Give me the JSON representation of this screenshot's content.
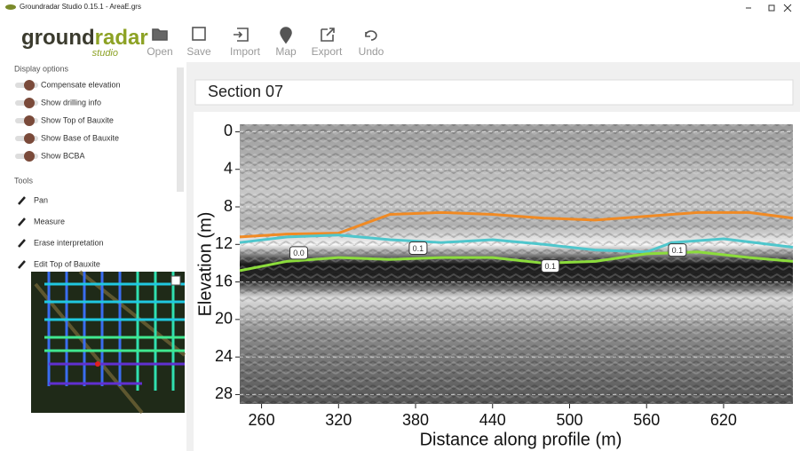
{
  "window_title": "Groundradar Studio 0.15.1 - AreaE.grs",
  "logo": {
    "ground": "ground",
    "radar": "radar",
    "studio": "studio"
  },
  "toolbar": [
    {
      "label": "Open"
    },
    {
      "label": "Save"
    },
    {
      "label": "Import"
    },
    {
      "label": "Map"
    },
    {
      "label": "Export"
    },
    {
      "label": "Undo"
    }
  ],
  "display_options": {
    "title": "Display options",
    "items": [
      "Compensate elevation",
      "Show drilling info",
      "Show Top of Bauxite",
      "Show Base of Bauxite",
      "Show BCBA"
    ]
  },
  "tools": {
    "title": "Tools",
    "items": [
      "Pan",
      "Measure",
      "Erase interpretation",
      "Edit Top of Bauxite"
    ]
  },
  "section_title": "Section 07",
  "chart_data": {
    "type": "line",
    "xlabel": "Distance along profile (m)",
    "ylabel": "Elevation (m)",
    "xlim": [
      243,
      674
    ],
    "ylim": [
      -0.8,
      29
    ],
    "y_reversed": true,
    "xticks": [
      260,
      320,
      380,
      440,
      500,
      560,
      620
    ],
    "yticks": [
      0,
      4,
      8,
      12,
      16,
      20,
      24,
      28
    ],
    "grid": true,
    "series": [
      {
        "color": "#f08a24",
        "x": [
          243,
          280,
          320,
          360,
          400,
          440,
          480,
          520,
          560,
          600,
          640,
          674
        ],
        "values": [
          11.2,
          10.9,
          10.8,
          8.8,
          8.6,
          8.8,
          9.2,
          9.4,
          9.0,
          8.6,
          8.6,
          9.2
        ]
      },
      {
        "color": "#4fc6cc",
        "x": [
          243,
          280,
          320,
          360,
          400,
          440,
          480,
          520,
          560,
          580,
          620,
          674
        ],
        "values": [
          11.8,
          11.2,
          11.0,
          11.5,
          11.8,
          11.5,
          12.0,
          12.6,
          12.8,
          11.8,
          11.4,
          12.3
        ]
      },
      {
        "color": "#8cdc3c",
        "x": [
          243,
          280,
          320,
          360,
          400,
          440,
          480,
          520,
          560,
          600,
          640,
          674
        ],
        "values": [
          14.8,
          13.8,
          13.4,
          13.6,
          13.4,
          13.4,
          14.0,
          13.8,
          13.0,
          12.8,
          13.4,
          13.8
        ]
      }
    ],
    "annotations": [
      {
        "text": "0.0",
        "x": 289,
        "y": 12.9
      },
      {
        "text": "0.1",
        "x": 382,
        "y": 12.4
      },
      {
        "text": "0.1",
        "x": 485,
        "y": 14.3
      },
      {
        "text": "0.1",
        "x": 584,
        "y": 12.6
      }
    ]
  }
}
